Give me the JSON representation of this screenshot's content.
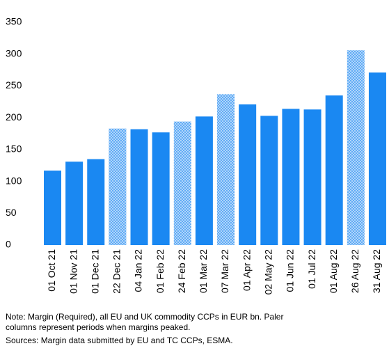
{
  "chart_data": {
    "type": "bar",
    "categories": [
      "01 Oct 21",
      "01 Nov 21",
      "01 Dec 21",
      "22 Dec 21",
      "04 Jan 22",
      "01 Feb 22",
      "24 Feb 22",
      "01 Mar 22",
      "07 Mar 22",
      "01 Apr 22",
      "02 May 22",
      "01 Jun 22",
      "01 Jul 22",
      "01 Aug 22",
      "26 Aug 22",
      "31 Aug 22"
    ],
    "values": [
      117,
      131,
      135,
      183,
      182,
      177,
      194,
      202,
      237,
      221,
      203,
      214,
      213,
      235,
      306,
      271
    ],
    "peak": [
      false,
      false,
      false,
      true,
      false,
      false,
      true,
      false,
      true,
      false,
      false,
      false,
      false,
      false,
      true,
      false
    ],
    "color": "#1a88f2",
    "peak_color": "#5aa8f5",
    "ylim": [
      0,
      350
    ],
    "yticks": [
      0,
      50,
      100,
      150,
      200,
      250,
      300,
      350
    ],
    "grid": false,
    "notes": [
      "Note: Margin (Required), all EU and UK commodity CCPs in EUR bn. Paler",
      "columns represent periods when margins peaked."
    ],
    "source": "Sources: Margin data submitted by EU and TC CCPs, ESMA."
  }
}
